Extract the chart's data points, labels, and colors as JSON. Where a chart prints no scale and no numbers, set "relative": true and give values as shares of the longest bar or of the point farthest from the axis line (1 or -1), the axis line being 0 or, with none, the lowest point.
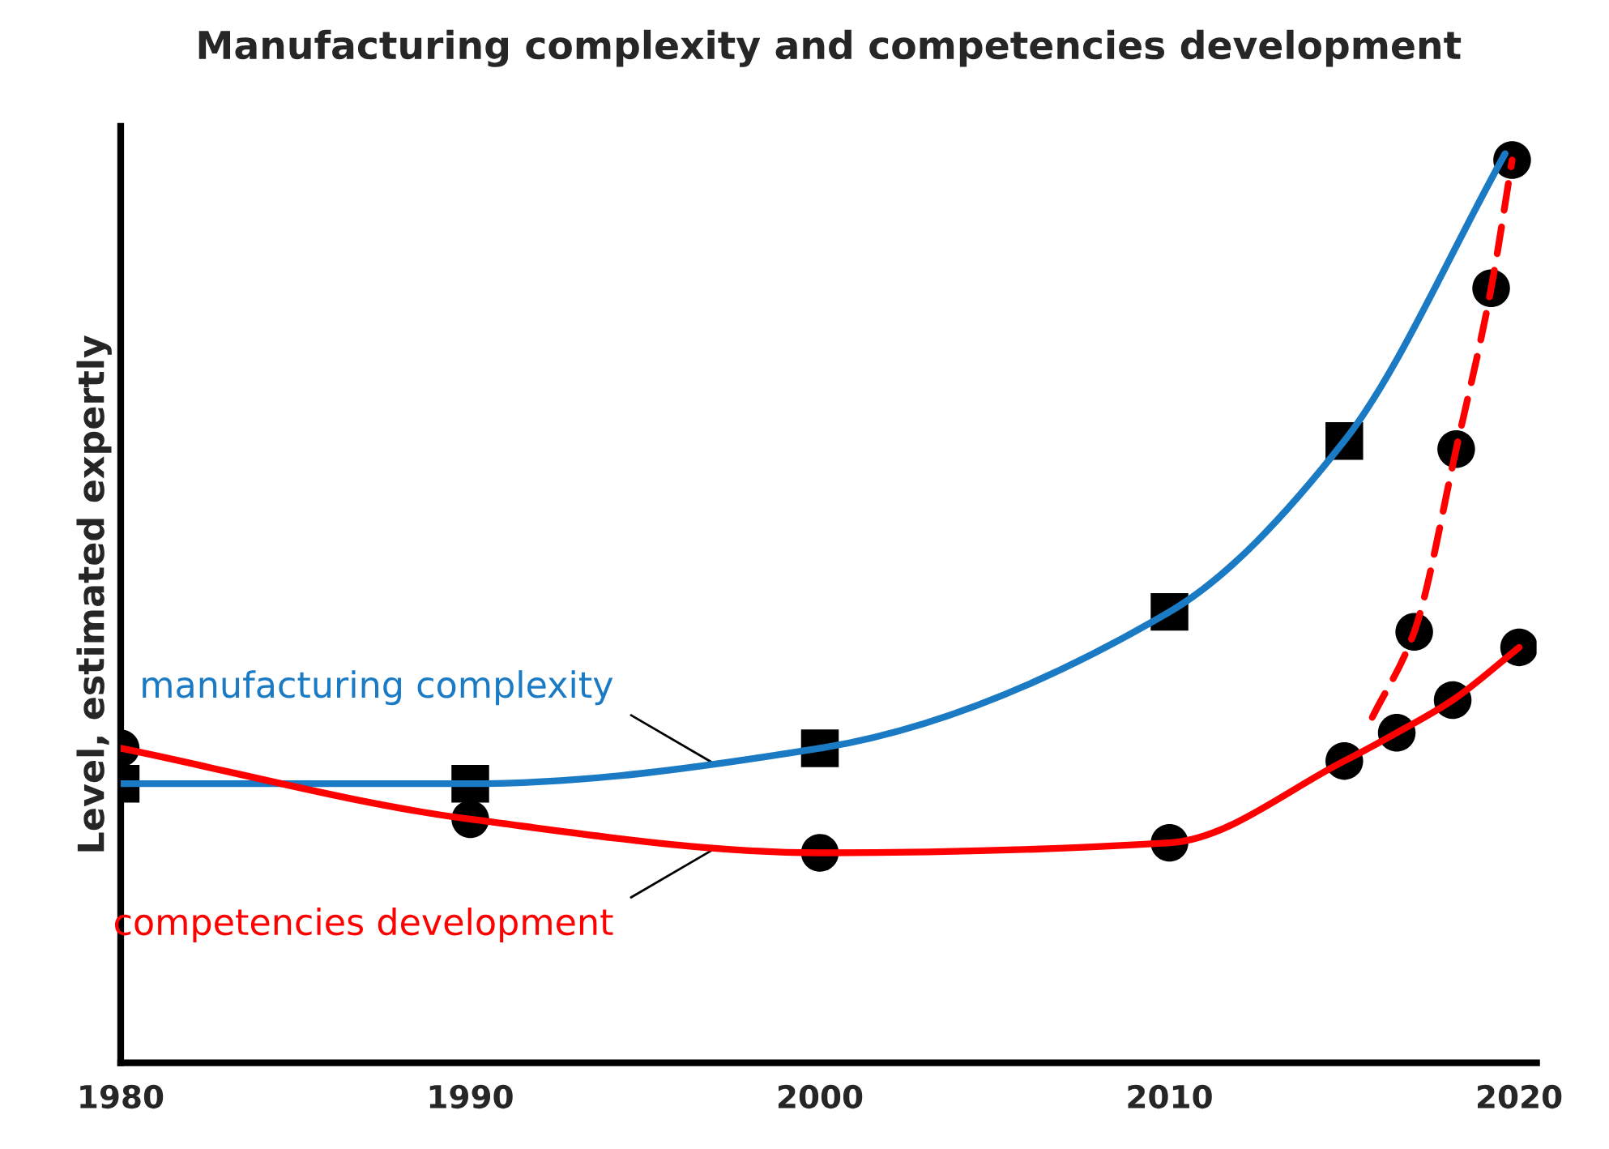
{
  "chart_data": {
    "type": "line",
    "title": "Manufacturing complexity and competencies development",
    "ylabel": "Level, estimated expertly",
    "relative": true,
    "xlim": [
      1980,
      2020.5
    ],
    "xticks": [
      1980,
      1990,
      2000,
      2010,
      2020
    ],
    "grid": false,
    "legend": false,
    "series": [
      {
        "name": "manufacturing complexity",
        "color": "#1a7ac4",
        "line_style": "solid",
        "marker": "none",
        "x": [
          1980,
          1990,
          2000,
          2010,
          2015,
          2019.6
        ],
        "values": [
          0.307,
          0.307,
          0.346,
          0.496,
          0.684,
          1.0
        ]
      },
      {
        "name": "competencies development",
        "color": "#ff0000",
        "line_style": "solid",
        "marker": "none",
        "x": [
          1980,
          1990,
          2000,
          2010,
          2015,
          2016.5,
          2018.1,
          2020
        ],
        "values": [
          0.346,
          0.268,
          0.231,
          0.242,
          0.332,
          0.363,
          0.399,
          0.457
        ]
      },
      {
        "color": "#ff0000",
        "line_style": "dashed",
        "marker": "none",
        "x": [
          2015.8,
          2017,
          2018.2,
          2019.2,
          2019.8
        ],
        "values": [
          0.38,
          0.474,
          0.675,
          0.852,
          0.993
        ]
      },
      {
        "type": "scatter",
        "color": "#000000",
        "marker": "square",
        "x": [
          1980,
          1990,
          2000,
          2010,
          2015
        ],
        "values": [
          0.307,
          0.307,
          0.346,
          0.496,
          0.684
        ]
      },
      {
        "type": "scatter",
        "color": "#000000",
        "marker": "circle",
        "x": [
          1980,
          1990,
          2000,
          2010,
          2015,
          2016.5,
          2018.1,
          2020,
          2017,
          2018.2,
          2019.2,
          2019.8
        ],
        "values": [
          0.346,
          0.268,
          0.231,
          0.242,
          0.332,
          0.363,
          0.399,
          0.457,
          0.474,
          0.675,
          0.852,
          0.993
        ]
      }
    ]
  }
}
